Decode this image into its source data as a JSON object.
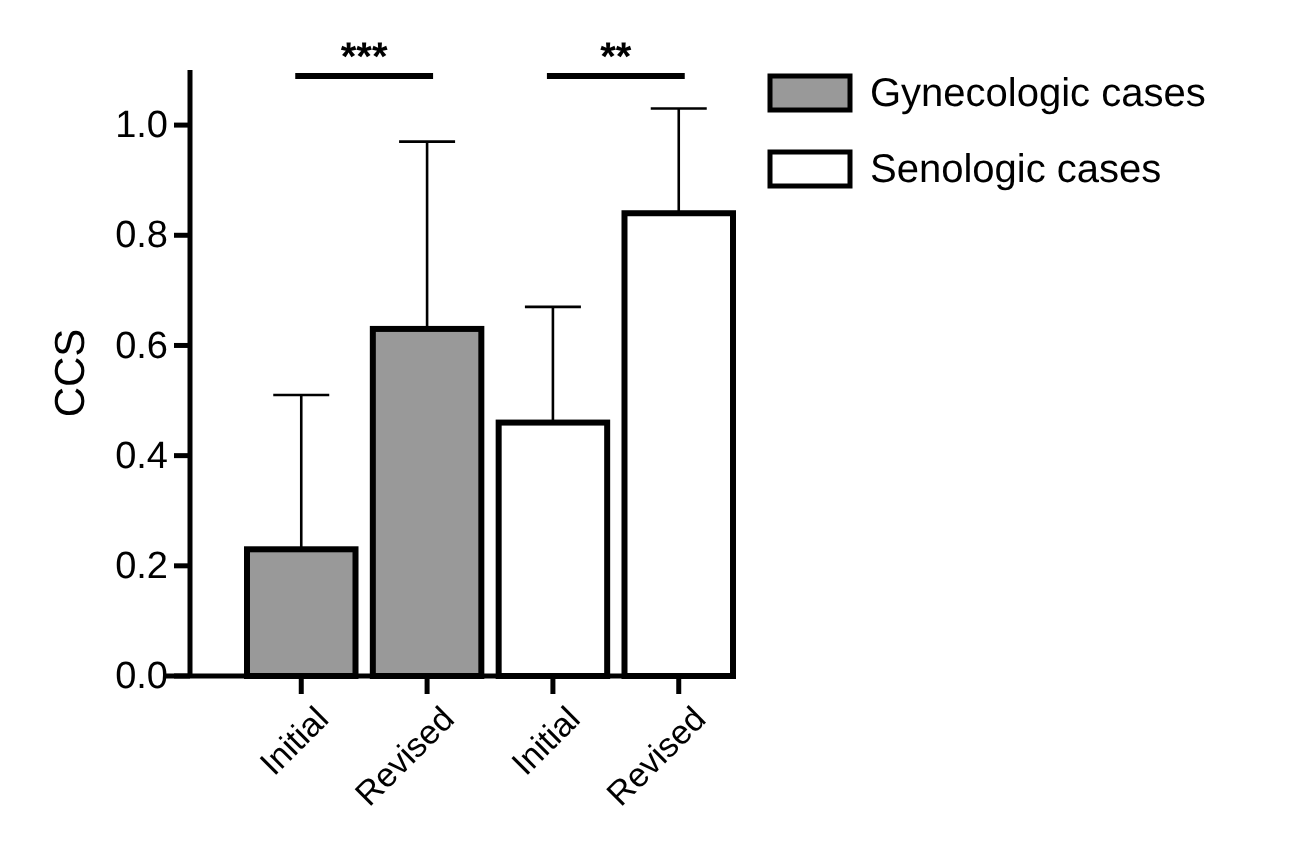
{
  "chart_data": {
    "type": "bar",
    "ylabel": "CCS",
    "categories": [
      "Initial",
      "Revised",
      "Initial",
      "Revised"
    ],
    "series": [
      {
        "name": "Gynecologic cases",
        "color": "#999999",
        "values": [
          0.23,
          0.63,
          null,
          null
        ],
        "errors": [
          0.28,
          0.34,
          null,
          null
        ]
      },
      {
        "name": "Senologic cases",
        "color": "#ffffff",
        "values": [
          null,
          null,
          0.46,
          0.84
        ],
        "errors": [
          null,
          null,
          0.21,
          0.19
        ]
      }
    ],
    "ylim": [
      0,
      1.1
    ],
    "yticks": [
      {
        "value": 0,
        "label": "0.0"
      },
      0.2,
      0.4,
      0.6,
      0.8,
      {
        "value": 1,
        "label": "1.0"
      }
    ],
    "annotations": [
      "***",
      "**"
    ],
    "legend": "top right",
    "grid": false
  }
}
